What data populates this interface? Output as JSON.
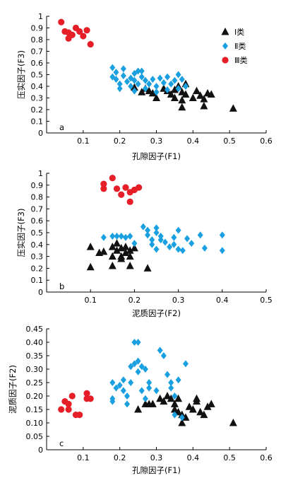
{
  "colors": {
    "I": "#111111",
    "II": "#1aa0e0",
    "III": "#e61e28",
    "axis": "#000000"
  },
  "legend": [
    {
      "key": "I",
      "label": "Ⅰ类",
      "marker": "triangle"
    },
    {
      "key": "II",
      "label": "Ⅱ类",
      "marker": "diamond"
    },
    {
      "key": "III",
      "label": "Ⅲ类",
      "marker": "circle"
    }
  ],
  "chart_data": [
    {
      "type": "scatter",
      "panel": "a",
      "xlabel": "孔隙因子(F1)",
      "ylabel": "压实因子(F3)",
      "xlim": [
        0,
        0.6
      ],
      "ylim": [
        0,
        1
      ],
      "xticks": [
        0.1,
        0.2,
        0.3,
        0.4,
        0.5,
        0.6
      ],
      "xtick_labels": [
        "0.1",
        "0.2",
        "0.3",
        "0.4",
        "0.5",
        "0.6"
      ],
      "yticks": [
        0,
        0.1,
        0.2,
        0.3,
        0.4,
        0.5,
        0.6,
        0.7,
        0.8,
        0.9,
        1
      ],
      "ytick_labels": [
        "0",
        "0.1",
        "0.2",
        "0.3",
        "0.4",
        "0.5",
        "0.6",
        "0.7",
        "0.8",
        "0.9",
        "1"
      ],
      "legend_position": "top-right",
      "series": [
        {
          "name": "Ⅰ类",
          "key": "I",
          "marker": "triangle",
          "points": [
            [
              0.24,
              0.39
            ],
            [
              0.26,
              0.35
            ],
            [
              0.27,
              0.38
            ],
            [
              0.28,
              0.36
            ],
            [
              0.29,
              0.34
            ],
            [
              0.3,
              0.3
            ],
            [
              0.32,
              0.38
            ],
            [
              0.33,
              0.36
            ],
            [
              0.34,
              0.33
            ],
            [
              0.35,
              0.3
            ],
            [
              0.35,
              0.37
            ],
            [
              0.36,
              0.4
            ],
            [
              0.37,
              0.35
            ],
            [
              0.37,
              0.28
            ],
            [
              0.37,
              0.22
            ],
            [
              0.38,
              0.33
            ],
            [
              0.38,
              0.42
            ],
            [
              0.4,
              0.3
            ],
            [
              0.41,
              0.36
            ],
            [
              0.42,
              0.32
            ],
            [
              0.43,
              0.29
            ],
            [
              0.43,
              0.23
            ],
            [
              0.44,
              0.34
            ],
            [
              0.45,
              0.33
            ],
            [
              0.51,
              0.21
            ]
          ]
        },
        {
          "name": "Ⅱ类",
          "key": "II",
          "marker": "diamond",
          "points": [
            [
              0.18,
              0.56
            ],
            [
              0.18,
              0.48
            ],
            [
              0.19,
              0.52
            ],
            [
              0.19,
              0.46
            ],
            [
              0.2,
              0.42
            ],
            [
              0.2,
              0.38
            ],
            [
              0.21,
              0.55
            ],
            [
              0.21,
              0.49
            ],
            [
              0.22,
              0.44
            ],
            [
              0.23,
              0.4
            ],
            [
              0.23,
              0.47
            ],
            [
              0.24,
              0.51
            ],
            [
              0.24,
              0.45
            ],
            [
              0.24,
              0.36
            ],
            [
              0.25,
              0.53
            ],
            [
              0.25,
              0.42
            ],
            [
              0.26,
              0.48
            ],
            [
              0.26,
              0.53
            ],
            [
              0.27,
              0.45
            ],
            [
              0.27,
              0.38
            ],
            [
              0.28,
              0.42
            ],
            [
              0.29,
              0.46
            ],
            [
              0.3,
              0.4
            ],
            [
              0.31,
              0.47
            ],
            [
              0.32,
              0.43
            ],
            [
              0.33,
              0.48
            ],
            [
              0.34,
              0.42
            ],
            [
              0.35,
              0.45
            ],
            [
              0.36,
              0.5
            ],
            [
              0.36,
              0.38
            ],
            [
              0.37,
              0.46
            ],
            [
              0.38,
              0.4
            ],
            [
              0.33,
              0.37
            ],
            [
              0.3,
              0.35
            ]
          ]
        },
        {
          "name": "Ⅲ类",
          "key": "III",
          "marker": "circle",
          "points": [
            [
              0.04,
              0.95
            ],
            [
              0.05,
              0.87
            ],
            [
              0.06,
              0.86
            ],
            [
              0.06,
              0.81
            ],
            [
              0.07,
              0.84
            ],
            [
              0.08,
              0.9
            ],
            [
              0.09,
              0.87
            ],
            [
              0.1,
              0.83
            ],
            [
              0.11,
              0.88
            ],
            [
              0.12,
              0.76
            ]
          ]
        }
      ]
    },
    {
      "type": "scatter",
      "panel": "b",
      "xlabel": "泥质因子(F2)",
      "ylabel": "压实因子(F3)",
      "xlim": [
        0,
        0.5
      ],
      "ylim": [
        0,
        1
      ],
      "xticks": [
        0.1,
        0.2,
        0.3,
        0.4,
        0.5
      ],
      "xtick_labels": [
        "0.1",
        "0.2",
        "0.3",
        "0.4",
        "0.5"
      ],
      "yticks": [
        0,
        0.1,
        0.2,
        0.3,
        0.4,
        0.5,
        0.6,
        0.7,
        0.8,
        0.9,
        1
      ],
      "ytick_labels": [
        "0",
        "0.1",
        "0.2",
        "0.3",
        "0.4",
        "0.5",
        "0.6",
        "0.7",
        "0.8",
        "0.9",
        "1"
      ],
      "series": [
        {
          "name": "Ⅰ类",
          "key": "I",
          "marker": "triangle",
          "points": [
            [
              0.1,
              0.38
            ],
            [
              0.1,
              0.21
            ],
            [
              0.12,
              0.33
            ],
            [
              0.13,
              0.34
            ],
            [
              0.15,
              0.3
            ],
            [
              0.15,
              0.38
            ],
            [
              0.15,
              0.22
            ],
            [
              0.16,
              0.35
            ],
            [
              0.16,
              0.41
            ],
            [
              0.17,
              0.3
            ],
            [
              0.17,
              0.37
            ],
            [
              0.17,
              0.28
            ],
            [
              0.18,
              0.33
            ],
            [
              0.18,
              0.38
            ],
            [
              0.19,
              0.3
            ],
            [
              0.19,
              0.22
            ],
            [
              0.19,
              0.35
            ],
            [
              0.2,
              0.37
            ],
            [
              0.23,
              0.2
            ]
          ]
        },
        {
          "name": "Ⅱ类",
          "key": "II",
          "marker": "diamond",
          "points": [
            [
              0.13,
              0.46
            ],
            [
              0.15,
              0.47
            ],
            [
              0.16,
              0.47
            ],
            [
              0.17,
              0.47
            ],
            [
              0.18,
              0.46
            ],
            [
              0.19,
              0.47
            ],
            [
              0.2,
              0.41
            ],
            [
              0.22,
              0.55
            ],
            [
              0.23,
              0.48
            ],
            [
              0.23,
              0.52
            ],
            [
              0.24,
              0.4
            ],
            [
              0.24,
              0.44
            ],
            [
              0.25,
              0.54
            ],
            [
              0.25,
              0.5
            ],
            [
              0.25,
              0.36
            ],
            [
              0.26,
              0.47
            ],
            [
              0.26,
              0.44
            ],
            [
              0.27,
              0.42
            ],
            [
              0.28,
              0.38
            ],
            [
              0.29,
              0.46
            ],
            [
              0.29,
              0.4
            ],
            [
              0.3,
              0.36
            ],
            [
              0.3,
              0.52
            ],
            [
              0.31,
              0.35
            ],
            [
              0.32,
              0.45
            ],
            [
              0.33,
              0.41
            ],
            [
              0.35,
              0.48
            ],
            [
              0.36,
              0.37
            ],
            [
              0.4,
              0.48
            ],
            [
              0.4,
              0.35
            ]
          ]
        },
        {
          "name": "Ⅲ类",
          "key": "III",
          "marker": "circle",
          "points": [
            [
              0.13,
              0.91
            ],
            [
              0.13,
              0.87
            ],
            [
              0.15,
              0.96
            ],
            [
              0.16,
              0.87
            ],
            [
              0.17,
              0.82
            ],
            [
              0.18,
              0.88
            ],
            [
              0.19,
              0.76
            ],
            [
              0.19,
              0.84
            ],
            [
              0.2,
              0.86
            ],
            [
              0.21,
              0.88
            ]
          ]
        }
      ]
    },
    {
      "type": "scatter",
      "panel": "c",
      "xlabel": "孔隙因子(F1)",
      "ylabel": "泥质因子(F2)",
      "xlim": [
        0,
        0.6
      ],
      "ylim": [
        0,
        0.45
      ],
      "xticks": [
        0.1,
        0.2,
        0.3,
        0.4,
        0.5,
        0.6
      ],
      "xtick_labels": [
        "0.1",
        "0.2",
        "0.3",
        "0.4",
        "0.5",
        "0.6"
      ],
      "yticks": [
        0,
        0.05,
        0.1,
        0.15,
        0.2,
        0.25,
        0.3,
        0.35,
        0.4,
        0.45
      ],
      "ytick_labels": [
        "0",
        "0.05",
        "0.10",
        "0.15",
        "0.20",
        "0.25",
        "0.30",
        "0.35",
        "0.40",
        "0.45"
      ],
      "series": [
        {
          "name": "Ⅰ类",
          "key": "I",
          "marker": "triangle",
          "points": [
            [
              0.25,
              0.15
            ],
            [
              0.27,
              0.17
            ],
            [
              0.28,
              0.17
            ],
            [
              0.29,
              0.17
            ],
            [
              0.31,
              0.19
            ],
            [
              0.32,
              0.18
            ],
            [
              0.33,
              0.2
            ],
            [
              0.34,
              0.19
            ],
            [
              0.35,
              0.17
            ],
            [
              0.35,
              0.15
            ],
            [
              0.36,
              0.14
            ],
            [
              0.36,
              0.19
            ],
            [
              0.37,
              0.13
            ],
            [
              0.37,
              0.1
            ],
            [
              0.38,
              0.12
            ],
            [
              0.39,
              0.16
            ],
            [
              0.4,
              0.15
            ],
            [
              0.41,
              0.18
            ],
            [
              0.41,
              0.19
            ],
            [
              0.42,
              0.14
            ],
            [
              0.43,
              0.13
            ],
            [
              0.44,
              0.16
            ],
            [
              0.45,
              0.17
            ],
            [
              0.51,
              0.1
            ]
          ]
        },
        {
          "name": "Ⅱ类",
          "key": "II",
          "marker": "diamond",
          "points": [
            [
              0.18,
              0.25
            ],
            [
              0.18,
              0.19
            ],
            [
              0.18,
              0.18
            ],
            [
              0.19,
              0.23
            ],
            [
              0.2,
              0.24
            ],
            [
              0.21,
              0.22
            ],
            [
              0.21,
              0.26
            ],
            [
              0.22,
              0.2
            ],
            [
              0.22,
              0.17
            ],
            [
              0.23,
              0.31
            ],
            [
              0.23,
              0.25
            ],
            [
              0.24,
              0.32
            ],
            [
              0.24,
              0.4
            ],
            [
              0.25,
              0.4
            ],
            [
              0.25,
              0.29
            ],
            [
              0.25,
              0.33
            ],
            [
              0.26,
              0.22
            ],
            [
              0.26,
              0.31
            ],
            [
              0.27,
              0.3
            ],
            [
              0.27,
              0.19
            ],
            [
              0.28,
              0.25
            ],
            [
              0.28,
              0.23
            ],
            [
              0.3,
              0.22
            ],
            [
              0.31,
              0.37
            ],
            [
              0.32,
              0.35
            ],
            [
              0.33,
              0.28
            ],
            [
              0.34,
              0.23
            ],
            [
              0.34,
              0.25
            ],
            [
              0.35,
              0.2
            ],
            [
              0.36,
              0.26
            ],
            [
              0.37,
              0.12
            ],
            [
              0.38,
              0.32
            ],
            [
              0.35,
              0.13
            ]
          ]
        },
        {
          "name": "Ⅲ类",
          "key": "III",
          "marker": "circle",
          "points": [
            [
              0.04,
              0.15
            ],
            [
              0.05,
              0.18
            ],
            [
              0.06,
              0.17
            ],
            [
              0.06,
              0.15
            ],
            [
              0.07,
              0.2
            ],
            [
              0.08,
              0.13
            ],
            [
              0.09,
              0.13
            ],
            [
              0.11,
              0.19
            ],
            [
              0.11,
              0.21
            ],
            [
              0.12,
              0.19
            ]
          ]
        }
      ]
    }
  ]
}
